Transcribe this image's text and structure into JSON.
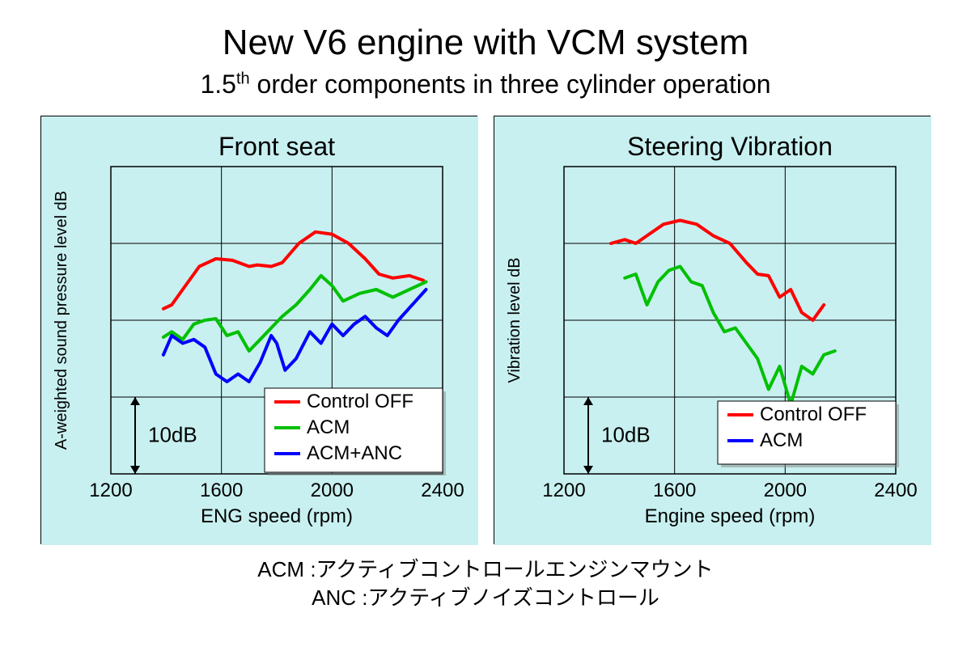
{
  "title_main": "New V6 engine with VCM system",
  "title_sub_pre": "1.5",
  "title_sub_sup": "th",
  "title_sub_post": " order components in three cylinder operation",
  "glossary": {
    "acm_key": "ACM",
    "acm_val": ":アクティブコントロールエンジンマウント",
    "anc_key": "ANC",
    "anc_val": ":アクティブノイズコントロール"
  },
  "panel_bg": "#c8f0f0",
  "plot_border": "#000000",
  "grid_color": "#000000",
  "colors": {
    "control_off": "#ff0000",
    "acm": "#00c000",
    "acm_anc": "#0000ff"
  },
  "line_width": 4,
  "chart_left": {
    "title": "Front seat",
    "xlabel": "ENG speed (rpm)",
    "ylabel": "A-weighted sound pressure level dB",
    "xlim": [
      1200,
      2400
    ],
    "xticks": [
      1200,
      1600,
      2000,
      2400
    ],
    "ygrid": [
      0,
      10,
      20,
      30,
      40
    ],
    "scale_label": "10dB",
    "legend": [
      {
        "label": "Control OFF",
        "color_key": "control_off"
      },
      {
        "label": "ACM",
        "color_key": "acm"
      },
      {
        "label": "ACM+ANC",
        "color_key": "acm_anc"
      }
    ],
    "series": {
      "control_off": [
        [
          1390,
          21.5
        ],
        [
          1420,
          22
        ],
        [
          1460,
          24
        ],
        [
          1520,
          27
        ],
        [
          1580,
          28
        ],
        [
          1640,
          27.8
        ],
        [
          1700,
          27
        ],
        [
          1730,
          27.2
        ],
        [
          1780,
          27
        ],
        [
          1820,
          27.5
        ],
        [
          1880,
          30
        ],
        [
          1940,
          31.5
        ],
        [
          2000,
          31.2
        ],
        [
          2060,
          30
        ],
        [
          2120,
          28
        ],
        [
          2170,
          26
        ],
        [
          2220,
          25.5
        ],
        [
          2280,
          25.8
        ],
        [
          2330,
          25.2
        ]
      ],
      "acm": [
        [
          1390,
          17.8
        ],
        [
          1420,
          18.5
        ],
        [
          1460,
          17.5
        ],
        [
          1500,
          19.5
        ],
        [
          1540,
          20
        ],
        [
          1580,
          20.2
        ],
        [
          1620,
          18
        ],
        [
          1660,
          18.5
        ],
        [
          1700,
          16
        ],
        [
          1740,
          17.5
        ],
        [
          1780,
          19
        ],
        [
          1820,
          20.5
        ],
        [
          1870,
          22
        ],
        [
          1920,
          24
        ],
        [
          1960,
          25.8
        ],
        [
          2000,
          24.5
        ],
        [
          2040,
          22.5
        ],
        [
          2100,
          23.5
        ],
        [
          2160,
          24
        ],
        [
          2220,
          23
        ],
        [
          2280,
          24
        ],
        [
          2340,
          25
        ]
      ],
      "acm_anc": [
        [
          1390,
          15.5
        ],
        [
          1420,
          18
        ],
        [
          1460,
          17
        ],
        [
          1500,
          17.5
        ],
        [
          1540,
          16.5
        ],
        [
          1580,
          13
        ],
        [
          1620,
          12
        ],
        [
          1660,
          13
        ],
        [
          1700,
          12
        ],
        [
          1740,
          14.5
        ],
        [
          1780,
          18
        ],
        [
          1800,
          17
        ],
        [
          1830,
          13.5
        ],
        [
          1870,
          15
        ],
        [
          1920,
          18.5
        ],
        [
          1960,
          17
        ],
        [
          2000,
          19.5
        ],
        [
          2040,
          18
        ],
        [
          2080,
          19.5
        ],
        [
          2120,
          20.5
        ],
        [
          2160,
          19
        ],
        [
          2200,
          18
        ],
        [
          2240,
          20
        ],
        [
          2290,
          22
        ],
        [
          2340,
          24
        ]
      ]
    }
  },
  "chart_right": {
    "title": "Steering Vibration",
    "xlabel": "Engine speed (rpm)",
    "ylabel": "Vibration  level dB",
    "xlim": [
      1200,
      2400
    ],
    "xticks": [
      1200,
      1600,
      2000,
      2400
    ],
    "ygrid": [
      0,
      10,
      20,
      30,
      40
    ],
    "scale_label": "10dB",
    "legend": [
      {
        "label": "Control OFF",
        "color_key": "control_off"
      },
      {
        "label": "ACM",
        "color_key": "acm_anc"
      }
    ],
    "series": {
      "control_off": [
        [
          1370,
          30
        ],
        [
          1420,
          30.5
        ],
        [
          1460,
          30
        ],
        [
          1500,
          31
        ],
        [
          1560,
          32.5
        ],
        [
          1620,
          33
        ],
        [
          1680,
          32.5
        ],
        [
          1740,
          31
        ],
        [
          1800,
          30
        ],
        [
          1860,
          27.5
        ],
        [
          1900,
          26
        ],
        [
          1940,
          25.8
        ],
        [
          1980,
          23
        ],
        [
          2020,
          24
        ],
        [
          2060,
          21
        ],
        [
          2100,
          20
        ],
        [
          2140,
          22
        ]
      ],
      "acm": [
        [
          1420,
          25.5
        ],
        [
          1460,
          26
        ],
        [
          1500,
          22
        ],
        [
          1540,
          25
        ],
        [
          1580,
          26.5
        ],
        [
          1620,
          27
        ],
        [
          1660,
          25
        ],
        [
          1700,
          24.5
        ],
        [
          1740,
          21
        ],
        [
          1780,
          18.5
        ],
        [
          1820,
          19
        ],
        [
          1860,
          17
        ],
        [
          1900,
          15
        ],
        [
          1940,
          11
        ],
        [
          1980,
          14
        ],
        [
          2020,
          9
        ],
        [
          2060,
          14
        ],
        [
          2100,
          13
        ],
        [
          2140,
          15.5
        ],
        [
          2180,
          16
        ]
      ]
    }
  }
}
